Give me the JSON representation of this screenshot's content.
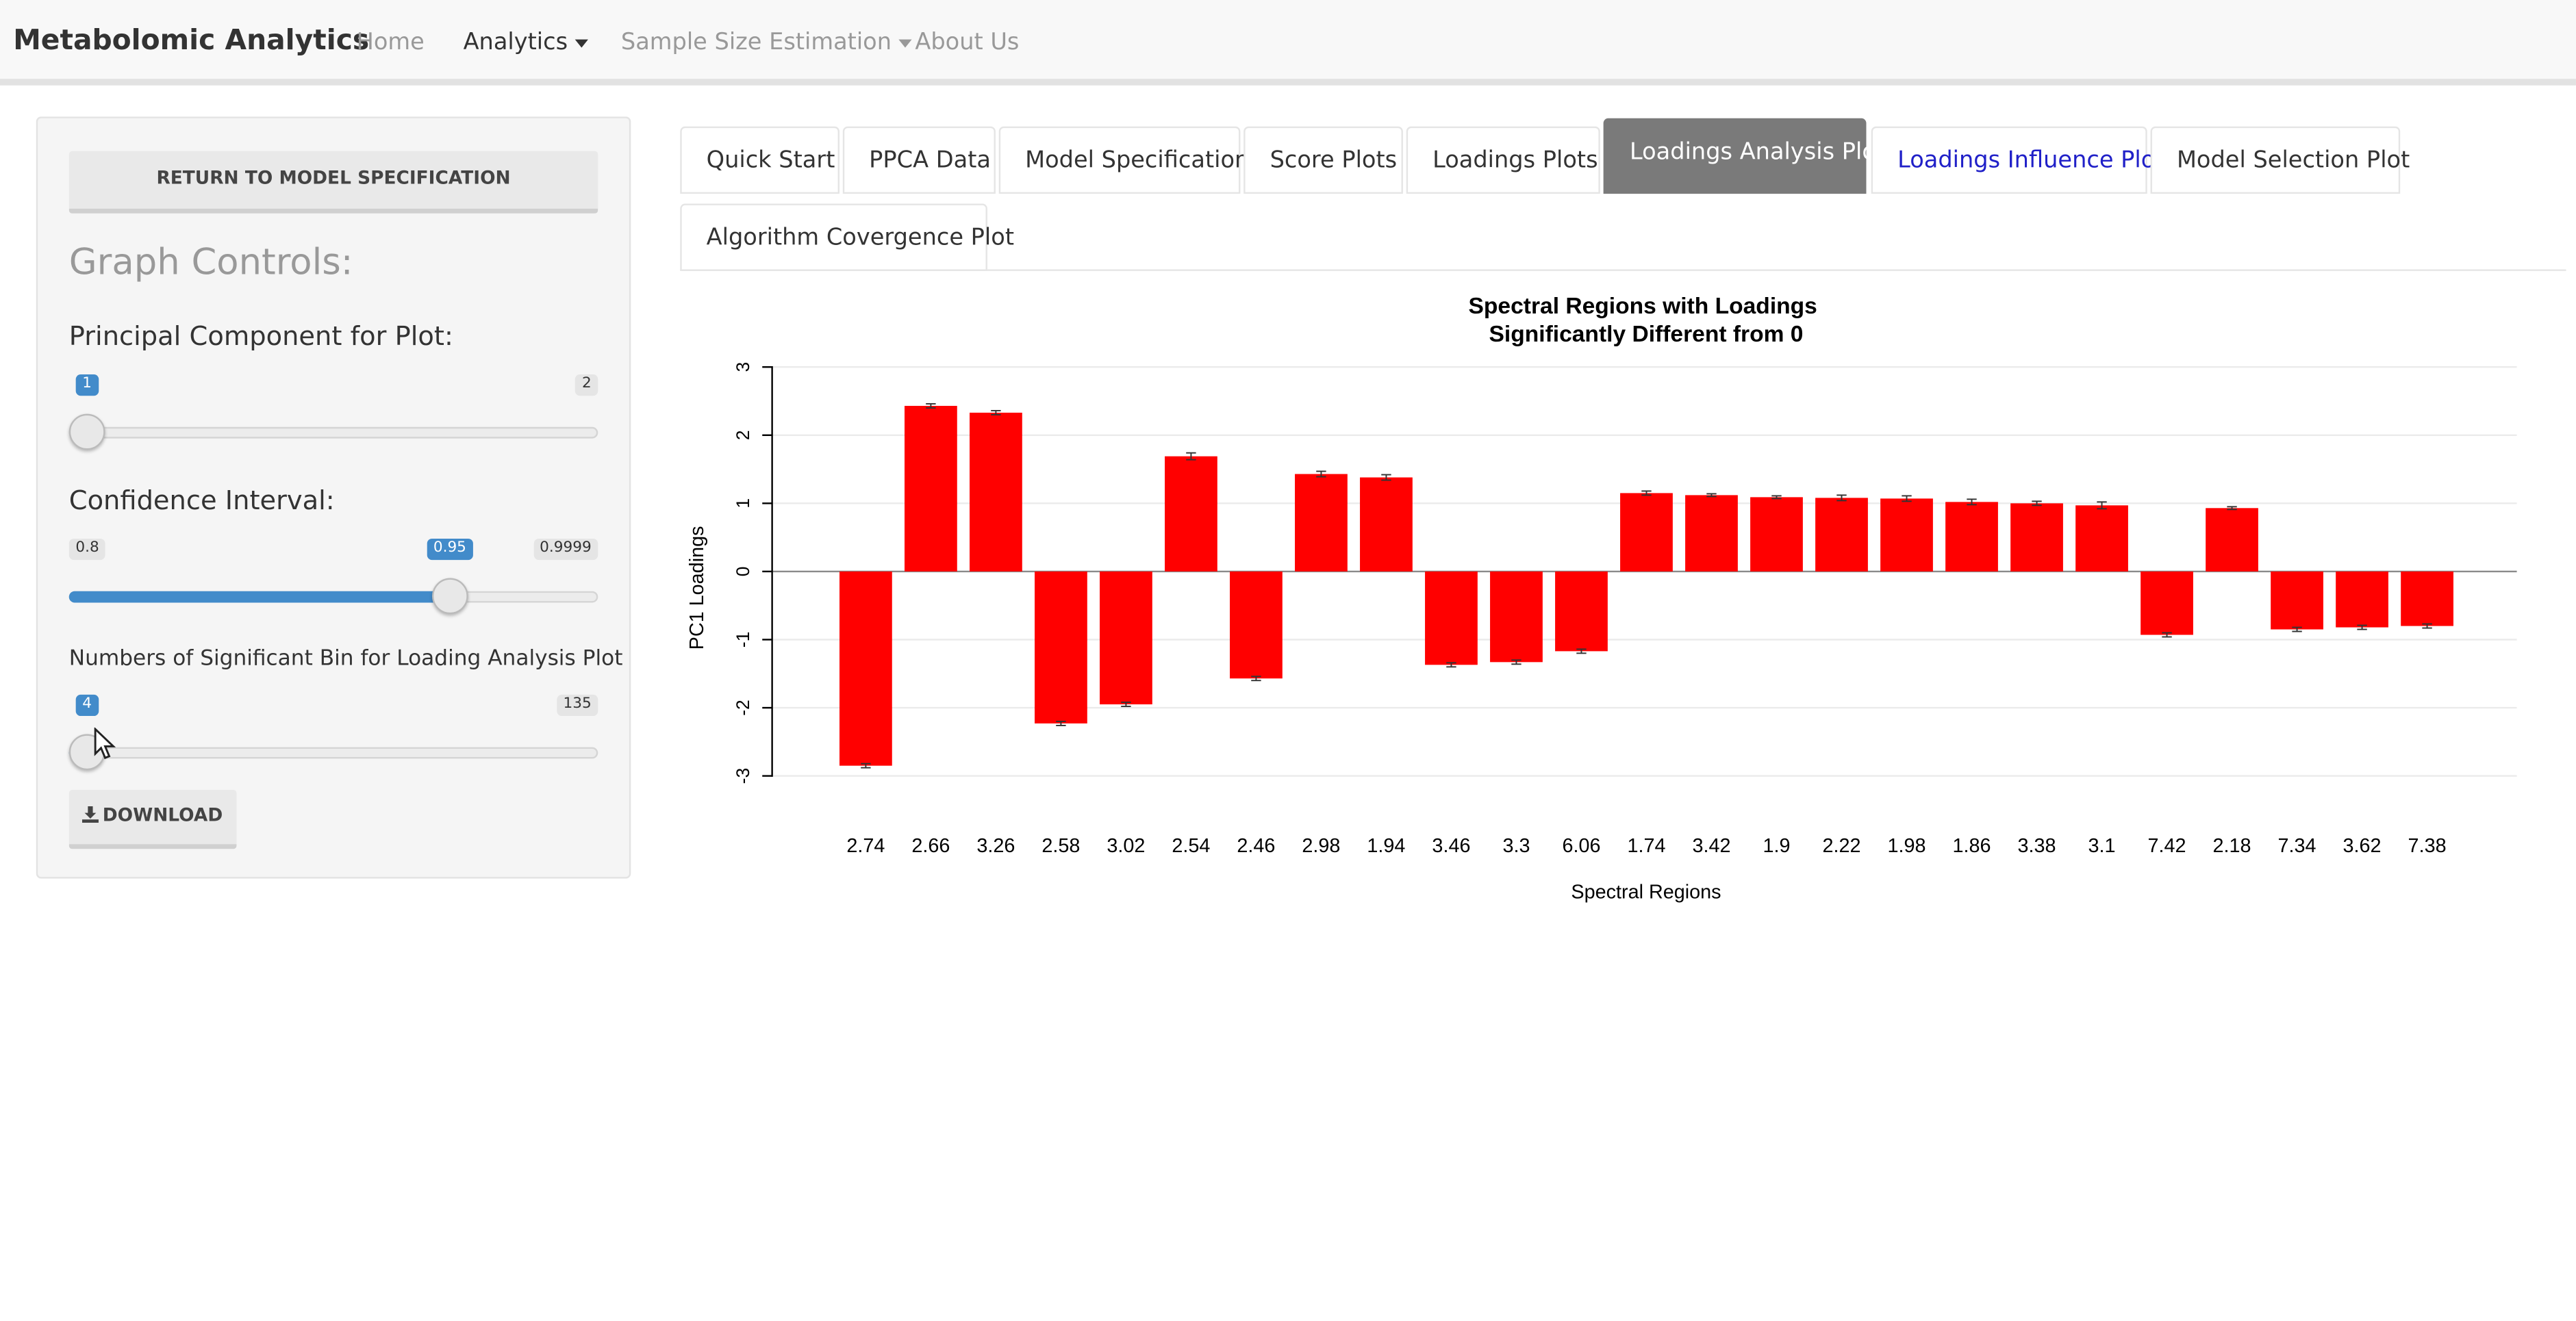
{
  "navbar": {
    "brand": "Metabolomic Analytics",
    "items": [
      {
        "label": "Home"
      },
      {
        "label": "Analytics"
      },
      {
        "label": "Sample Size Estimation"
      },
      {
        "label": "About Us"
      }
    ]
  },
  "sidebar": {
    "return_button": "RETURN TO MODEL SPECIFICATION",
    "graph_controls": "Graph Controls:",
    "pc": {
      "label": "Principal Component for Plot:",
      "min": "1",
      "max": "2",
      "value": "1",
      "fraction": 0
    },
    "ci": {
      "label": "Confidence Interval:",
      "min": "0.8",
      "max": "0.9999",
      "value": "0.95",
      "fraction": 0.736
    },
    "bins": {
      "label": "Numbers of Significant Bin for Loading Analysis Plot",
      "min": "4",
      "max": "135",
      "value": "4",
      "fraction": 0
    },
    "download": "DOWNLOAD"
  },
  "tabs": [
    {
      "label": "Quick Start"
    },
    {
      "label": "PPCA Data"
    },
    {
      "label": "Model Specification"
    },
    {
      "label": "Score Plots"
    },
    {
      "label": "Loadings Plots"
    },
    {
      "label": "Loadings Analysis Plot",
      "active": true
    },
    {
      "label": "Loadings Influence Plot"
    },
    {
      "label": "Model Selection Plot"
    },
    {
      "label": "Algorithm Covergence Plot"
    }
  ],
  "colors": {
    "bar": "#ff0000",
    "accent": "#428bca",
    "link": "#2020c8"
  },
  "icons": {
    "download": "download-icon",
    "caret": "caret-down-icon",
    "cursor": "mouse-pointer-icon"
  },
  "chart_data": {
    "type": "bar",
    "title_line1": "Spectral Regions with Loadings",
    "title_line2": "Significantly Different from 0",
    "xlabel": "Spectral Regions",
    "ylabel": "PC1 Loadings",
    "ylim": [
      -3,
      3
    ],
    "yticks": [
      "3",
      "2",
      "1",
      "0",
      "-1",
      "-2",
      "-3"
    ],
    "grid": true,
    "error_bars": true,
    "categories": [
      "2.74",
      "2.66",
      "3.26",
      "2.58",
      "3.02",
      "2.54",
      "2.46",
      "2.98",
      "1.94",
      "3.46",
      "3.3",
      "6.06",
      "1.74",
      "3.42",
      "1.9",
      "2.22",
      "1.98",
      "1.86",
      "3.38",
      "3.1",
      "7.42",
      "2.18",
      "7.34",
      "3.62",
      "7.38"
    ],
    "values": [
      -2.85,
      2.43,
      2.33,
      -2.23,
      -1.95,
      1.69,
      -1.57,
      1.43,
      1.38,
      -1.37,
      -1.33,
      -1.17,
      1.15,
      1.12,
      1.09,
      1.08,
      1.07,
      1.02,
      1.0,
      0.97,
      -0.93,
      0.93,
      -0.85,
      -0.82,
      -0.8
    ],
    "errors": [
      0.03,
      0.03,
      0.03,
      0.03,
      0.03,
      0.05,
      0.03,
      0.04,
      0.04,
      0.03,
      0.03,
      0.03,
      0.03,
      0.02,
      0.02,
      0.04,
      0.04,
      0.04,
      0.03,
      0.05,
      0.03,
      0.02,
      0.03,
      0.03,
      0.03
    ]
  }
}
